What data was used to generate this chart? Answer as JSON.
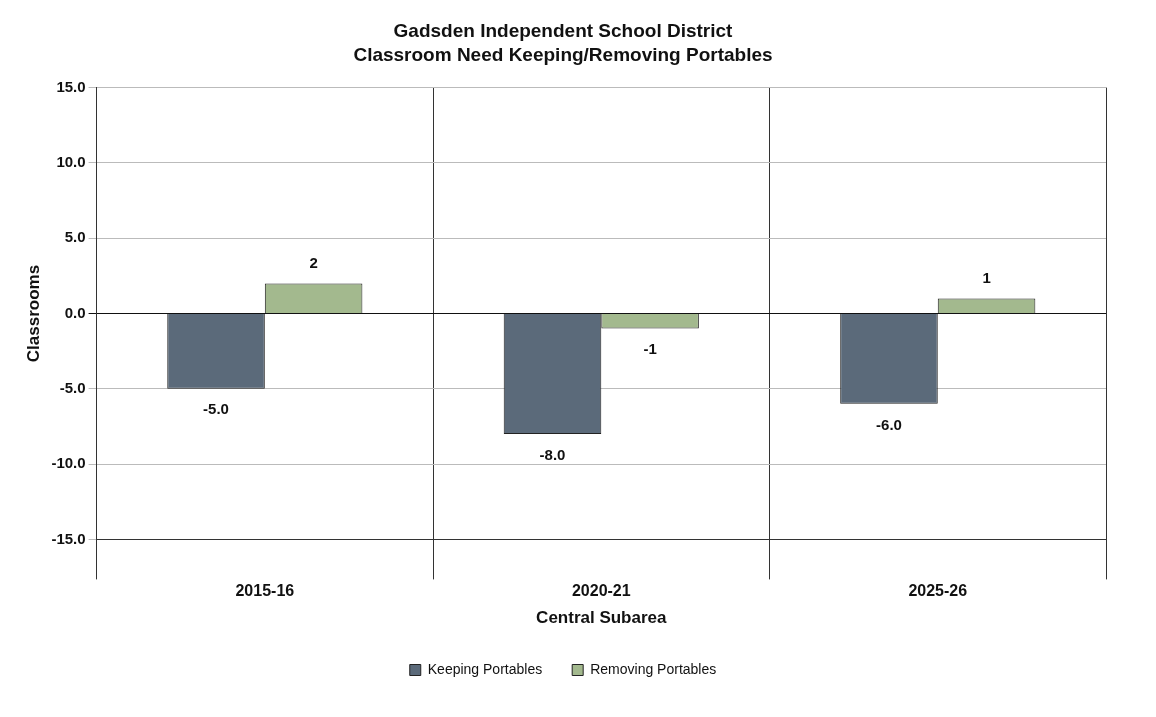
{
  "chart_data": {
    "type": "bar",
    "title": "Gadsden Independent School District",
    "subtitle": "Classroom Need Keeping/Removing Portables",
    "xlabel": "Central Subarea",
    "ylabel": "Classrooms",
    "categories": [
      "2015-16",
      "2020-21",
      "2025-26"
    ],
    "series": [
      {
        "name": "Keeping Portables",
        "color": "#5b6a7a",
        "values": [
          -5,
          -8,
          -6
        ],
        "value_labels": [
          "-5.0",
          "-8.0",
          "-6.0"
        ]
      },
      {
        "name": "Removing Portables",
        "color": "#a3b98e",
        "values": [
          2,
          -1,
          1
        ],
        "value_labels": [
          "2",
          "-1",
          "1"
        ]
      }
    ],
    "ylim": [
      -15,
      15
    ],
    "yticks": [
      {
        "value": -15,
        "label": "-15.0"
      },
      {
        "value": -10,
        "label": "-10.0"
      },
      {
        "value": -5,
        "label": "-5.0"
      },
      {
        "value": 0,
        "label": "0.0"
      },
      {
        "value": 5,
        "label": "5.0"
      },
      {
        "value": 10,
        "label": "10.0"
      },
      {
        "value": 15,
        "label": "15.0"
      }
    ],
    "grid": true,
    "legend": "bottom"
  }
}
